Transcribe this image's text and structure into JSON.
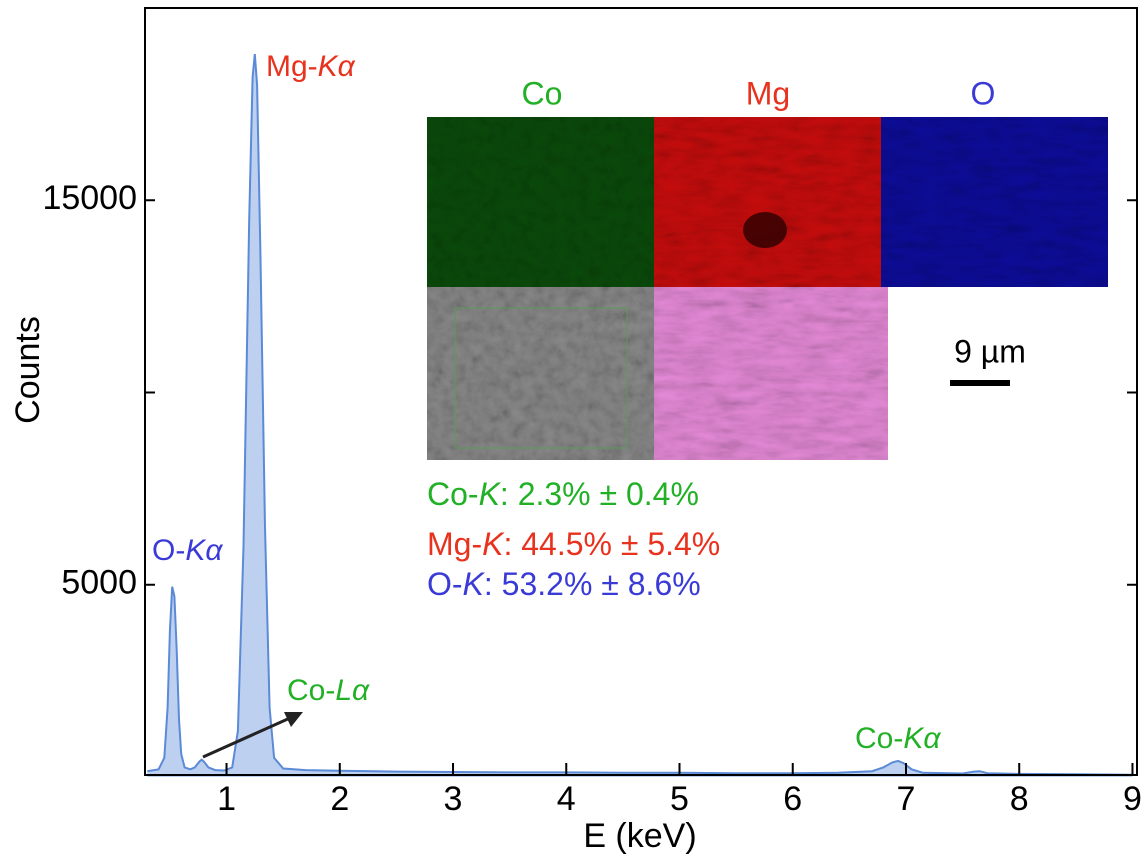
{
  "chart_data": {
    "type": "spectrum",
    "xlabel": "E (keV)",
    "ylabel": "Counts",
    "xlim": [
      0.28,
      9.04
    ],
    "xticks": [
      1,
      2,
      3,
      4,
      5,
      6,
      7,
      8,
      9
    ],
    "ylim": [
      0,
      20000
    ],
    "yticks": [
      5000,
      15000
    ],
    "yticks_unlabeled": [
      10000
    ],
    "series": [
      {
        "color": "#5b8ad6",
        "x": [
          0.3,
          0.4,
          0.45,
          0.48,
          0.5,
          0.52,
          0.54,
          0.56,
          0.58,
          0.6,
          0.63,
          0.68,
          0.72,
          0.76,
          0.78,
          0.8,
          0.84,
          0.9,
          0.98,
          1.05,
          1.1,
          1.15,
          1.2,
          1.23,
          1.25,
          1.27,
          1.3,
          1.34,
          1.38,
          1.42,
          1.5,
          1.7,
          2.0,
          2.5,
          3.0,
          3.5,
          4.0,
          4.5,
          5.0,
          5.5,
          6.0,
          6.4,
          6.7,
          6.8,
          6.88,
          6.93,
          6.98,
          7.05,
          7.15,
          7.5,
          7.6,
          7.65,
          7.72,
          8.0,
          8.5,
          9.0
        ],
        "values": [
          150,
          200,
          500,
          1800,
          3800,
          4950,
          4700,
          3300,
          1500,
          600,
          250,
          200,
          250,
          400,
          450,
          400,
          250,
          180,
          170,
          250,
          1200,
          6000,
          14500,
          18200,
          18800,
          18000,
          13500,
          6500,
          1800,
          500,
          220,
          180,
          160,
          140,
          130,
          120,
          120,
          110,
          110,
          100,
          100,
          110,
          150,
          250,
          380,
          420,
          360,
          200,
          110,
          90,
          140,
          150,
          100,
          80,
          70,
          60
        ]
      }
    ],
    "annotations": [
      {
        "parts": [
          "Mg-",
          "Kα"
        ],
        "color": "#e8321e"
      },
      {
        "parts": [
          "O-",
          "Kα"
        ],
        "color": "#3a3ad6"
      },
      {
        "parts": [
          "Co-",
          "Lα"
        ],
        "color": "#22b026"
      },
      {
        "parts": [
          "Co-",
          "Kα"
        ],
        "color": "#22b026"
      }
    ],
    "composition": [
      {
        "parts": [
          "Co-",
          "K",
          ": 2.3% ± 0.4%"
        ],
        "color": "#22b026"
      },
      {
        "parts": [
          "Mg-",
          "K",
          ": 44.5% ± 5.4%"
        ],
        "color": "#e8321e"
      },
      {
        "parts": [
          "O-",
          "K",
          ": 53.2% ± 8.6%"
        ],
        "color": "#3a3ad6"
      }
    ],
    "map_labels": [
      {
        "text": "Co",
        "color": "#22b026"
      },
      {
        "text": "Mg",
        "color": "#e8321e"
      },
      {
        "text": "O",
        "color": "#3a3ad6"
      }
    ],
    "scale_bar": "9 µm"
  }
}
